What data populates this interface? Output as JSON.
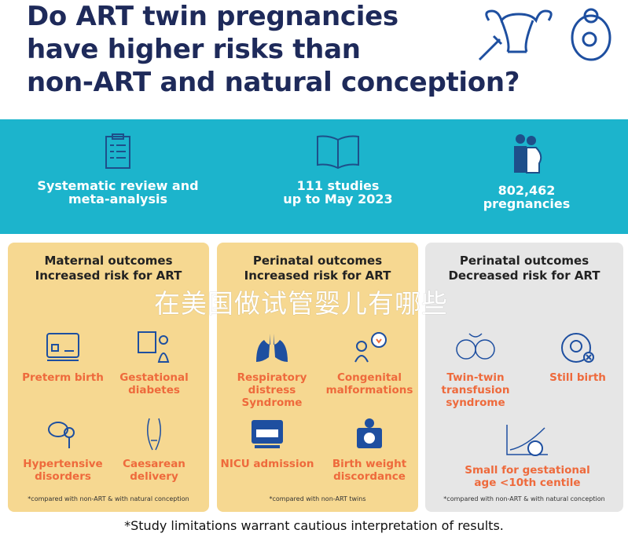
{
  "title": {
    "line1": "Do ART twin pregnancies",
    "line2": "have higher risks than",
    "line3": "non-ART and natural conception?"
  },
  "stats": [
    {
      "icon": "clipboard-checklist-icon",
      "line1": "Systematic review and",
      "line2": "meta-analysis"
    },
    {
      "icon": "open-book-icon",
      "line1": "111 studies",
      "line2": "up to May 2023"
    },
    {
      "icon": "pregnant-couple-icon",
      "line1": "802,462",
      "line2": "pregnancies"
    }
  ],
  "panels": [
    {
      "h1": "Maternal outcomes",
      "h2": "Increased risk for ART",
      "note": "*compared with non-ART & with natural conception",
      "items": [
        {
          "l1": "Preterm birth",
          "l2": ""
        },
        {
          "l1": "Gestational",
          "l2": "diabetes"
        },
        {
          "l1": "Hypertensive",
          "l2": "disorders"
        },
        {
          "l1": "Caesarean",
          "l2": "delivery"
        }
      ]
    },
    {
      "h1": "Perinatal outcomes",
      "h2": "Increased risk for ART",
      "note": "*compared with non-ART twins",
      "items": [
        {
          "l1": "Respiratory distress",
          "l2": "Syndrome"
        },
        {
          "l1": "Congenital",
          "l2": "malformations"
        },
        {
          "l1": "NICU admission",
          "l2": ""
        },
        {
          "l1": "Birth weight",
          "l2": "discordance"
        }
      ]
    },
    {
      "h1": "Perinatal outcomes",
      "h2": "Decreased risk for ART",
      "note": "*compared with non-ART & with natural conception",
      "items": [
        {
          "l1": "Twin-twin",
          "l2": "transfusion",
          "l3": "syndrome"
        },
        {
          "l1": "Still birth",
          "l2": ""
        },
        {
          "l1": "Small for gestational",
          "l2": "age <10th centile"
        }
      ]
    }
  ],
  "footer": "*Study limitations warrant cautious interpretation of results.",
  "watermark": "在美国做试管婴儿有哪些",
  "colors": {
    "title": "#1e2a5a",
    "band": "#1cb4cc",
    "panel_increased": "#f6d891",
    "panel_decreased": "#e6e6e6",
    "outcome_text": "#ee6a3c"
  }
}
